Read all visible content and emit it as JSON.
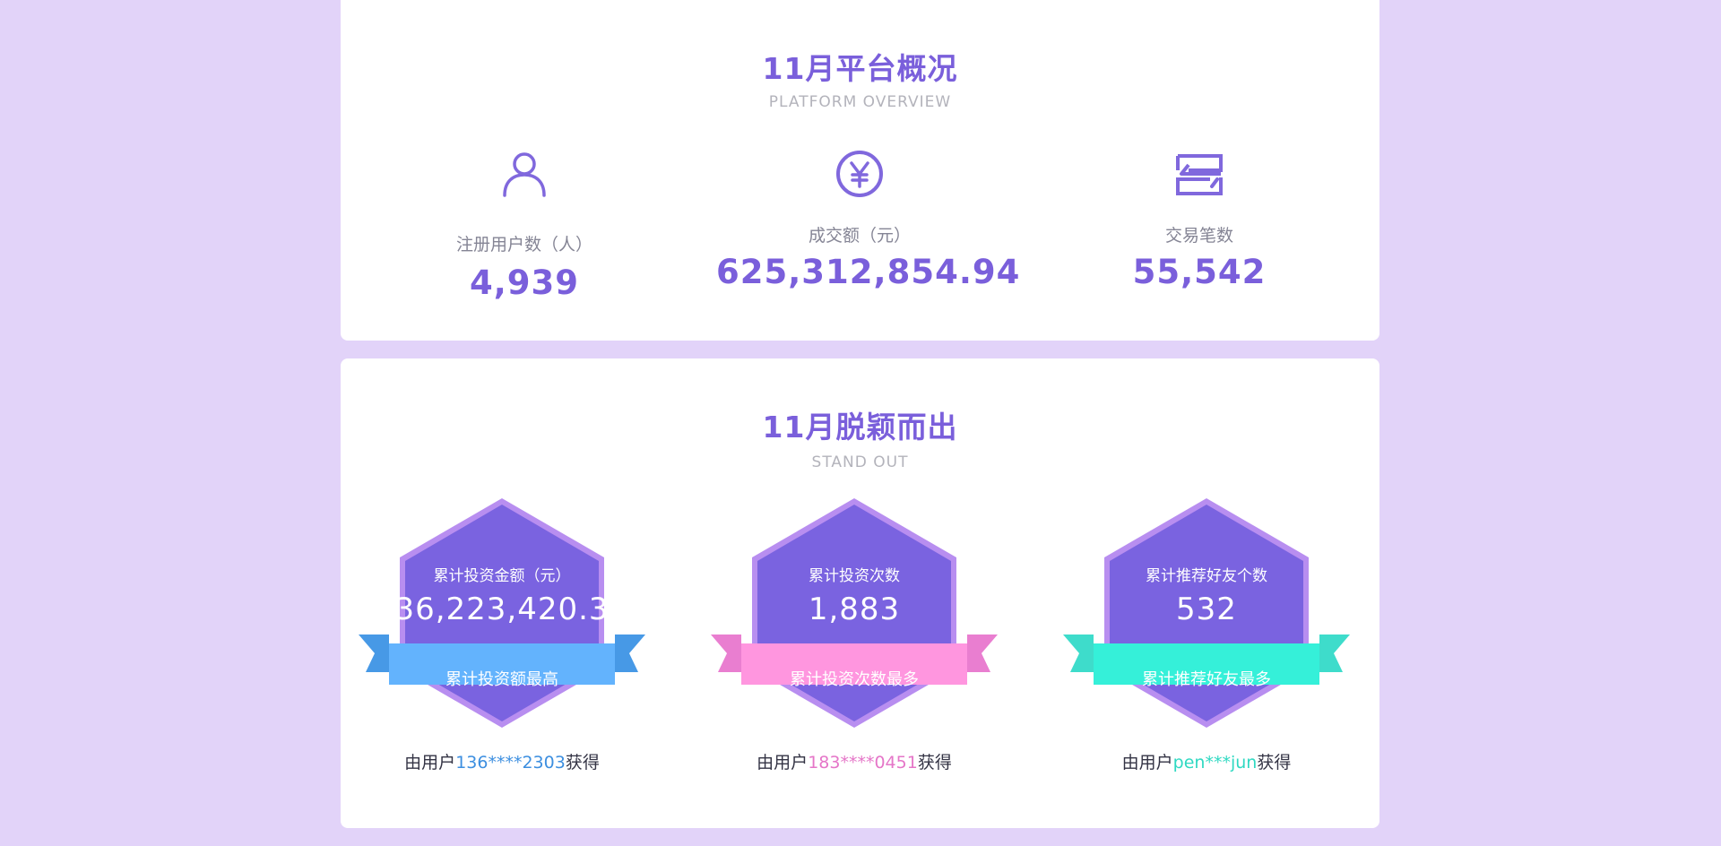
{
  "overview": {
    "title": "11月平台概况",
    "subtitle": "PLATFORM OVERVIEW",
    "stats": [
      {
        "icon": "user-icon",
        "label": "注册用户数（人）",
        "value": "4,939"
      },
      {
        "icon": "yuan-coin-icon",
        "label": "成交额（元）",
        "value": "625,312,854.94"
      },
      {
        "icon": "transaction-icon",
        "label": "交易笔数",
        "value": "55,542"
      }
    ]
  },
  "standout": {
    "title": "11月脱颖而出",
    "subtitle": "STAND OUT",
    "badges": [
      {
        "label": "累计投资金额（元）",
        "value": "36,223,420.3",
        "ribbon": "累计投资额最高",
        "owner_prefix": "由用户",
        "owner_id": "136****2303",
        "owner_suffix": "获得",
        "ribbon_color": "#63b3fd",
        "ribbon_fold_color": "#4799e6",
        "id_color": "#3d8fe0"
      },
      {
        "label": "累计投资次数",
        "value": "1,883",
        "ribbon": "累计投资次数最多",
        "owner_prefix": "由用户",
        "owner_id": "183****0451",
        "owner_suffix": "获得",
        "ribbon_color": "#ff96df",
        "ribbon_fold_color": "#e97ed0",
        "id_color": "#e576c8"
      },
      {
        "label": "累计推荐好友个数",
        "value": "532",
        "ribbon": "累计推荐好友最多",
        "owner_prefix": "由用户",
        "owner_id": "pen***jun",
        "owner_suffix": "获得",
        "ribbon_color": "#35f0d9",
        "ribbon_fold_color": "#3edccb",
        "id_color": "#2fd9c2"
      }
    ]
  },
  "colors": {
    "accent": "#7a5fdb",
    "hex_fill": "#7a63e0",
    "hex_border": "#b88ef0",
    "page_background": "#e2d3f9"
  }
}
